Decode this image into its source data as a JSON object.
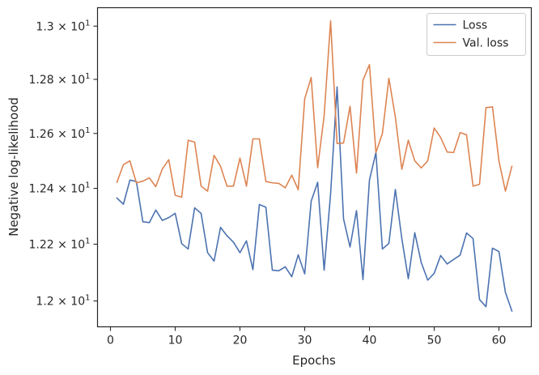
{
  "chart_data": {
    "type": "line",
    "xlabel": "Epochs",
    "ylabel": "Negative log-likelihood",
    "xlim": [
      -2,
      65
    ],
    "ylim": [
      11.91,
      13.07
    ],
    "yscale": "log",
    "grid": false,
    "legend_position": "top-right",
    "x_ticks": [
      0,
      10,
      20,
      30,
      40,
      50,
      60
    ],
    "x_tick_labels": [
      "0",
      "10",
      "20",
      "30",
      "40",
      "50",
      "60"
    ],
    "y_ticks": [
      12.0,
      12.2,
      12.4,
      12.6,
      12.8,
      13.0
    ],
    "y_tick_mantissas": [
      "1.2",
      "1.22",
      "1.24",
      "1.26",
      "1.28",
      "1.3"
    ],
    "y_tick_base": "10",
    "y_tick_exponent": "1",
    "y_tick_times": "×",
    "x": [
      1,
      2,
      3,
      4,
      5,
      6,
      7,
      8,
      9,
      10,
      11,
      12,
      13,
      14,
      15,
      16,
      17,
      18,
      19,
      20,
      21,
      22,
      23,
      24,
      25,
      26,
      27,
      28,
      29,
      30,
      31,
      32,
      33,
      34,
      35,
      36,
      37,
      38,
      39,
      40,
      41,
      42,
      43,
      44,
      45,
      46,
      47,
      48,
      49,
      50,
      51,
      52,
      53,
      54,
      55,
      56,
      57,
      58,
      59,
      60,
      61,
      62
    ],
    "series": [
      {
        "name": "Loss",
        "color": "#4c72b0",
        "values": [
          12.365,
          12.343,
          12.43,
          12.425,
          12.28,
          12.277,
          12.322,
          12.285,
          12.295,
          12.31,
          12.202,
          12.183,
          12.33,
          12.31,
          12.17,
          12.14,
          12.26,
          12.23,
          12.207,
          12.17,
          12.212,
          12.11,
          12.342,
          12.332,
          12.108,
          12.106,
          12.12,
          12.085,
          12.162,
          12.095,
          12.354,
          12.422,
          12.108,
          12.38,
          12.772,
          12.29,
          12.19,
          12.32,
          12.075,
          12.43,
          12.53,
          12.183,
          12.203,
          12.396,
          12.22,
          12.078,
          12.241,
          12.135,
          12.073,
          12.097,
          12.16,
          12.13,
          12.146,
          12.161,
          12.24,
          12.22,
          12.005,
          11.98,
          12.186,
          12.174,
          12.03,
          11.965
        ]
      },
      {
        "name": "Val. loss",
        "color": "#dd8452",
        "values": [
          12.422,
          12.486,
          12.5,
          12.42,
          12.426,
          12.438,
          12.406,
          12.47,
          12.504,
          12.375,
          12.368,
          12.575,
          12.568,
          12.408,
          12.39,
          12.52,
          12.48,
          12.408,
          12.408,
          12.51,
          12.408,
          12.58,
          12.58,
          12.425,
          12.42,
          12.418,
          12.402,
          12.448,
          12.395,
          12.728,
          12.807,
          12.475,
          12.665,
          13.02,
          12.563,
          12.565,
          12.7,
          12.455,
          12.797,
          12.855,
          12.53,
          12.6,
          12.804,
          12.66,
          12.469,
          12.575,
          12.5,
          12.474,
          12.5,
          12.62,
          12.585,
          12.532,
          12.53,
          12.603,
          12.595,
          12.408,
          12.415,
          12.695,
          12.698,
          12.5,
          12.39,
          12.48
        ]
      }
    ]
  }
}
